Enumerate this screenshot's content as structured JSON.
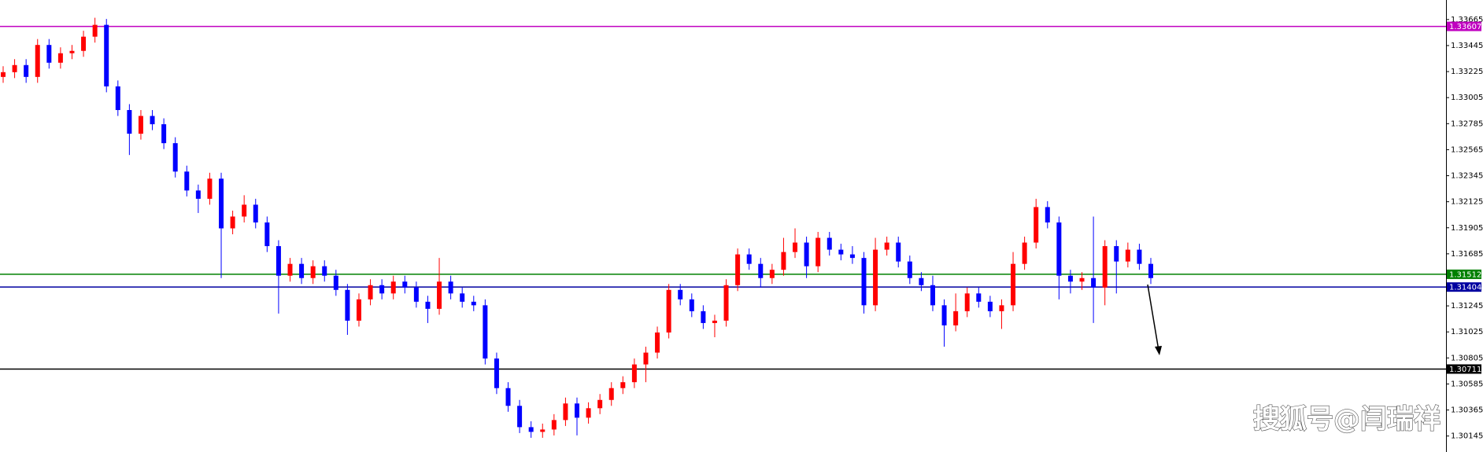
{
  "chart_data": {
    "type": "candlestick",
    "up_color": "#ff0000",
    "down_color": "#0000ff",
    "ylim": [
      1.3001,
      1.3383
    ],
    "yticks": [
      1.33665,
      1.33445,
      1.33225,
      1.33005,
      1.32785,
      1.32565,
      1.32345,
      1.32125,
      1.31905,
      1.31685,
      1.31245,
      1.31025,
      1.30805,
      1.30585,
      1.30365,
      1.30145
    ],
    "levels": [
      {
        "value": 1.33607,
        "color": "#c000c0"
      },
      {
        "value": 1.31512,
        "color": "#008000"
      },
      {
        "value": 1.31404,
        "color": "#0000a0"
      },
      {
        "value": 1.30711,
        "color": "#000000"
      }
    ],
    "watermark": "搜狐号@闫瑞祥",
    "open": [
      1.3318,
      1.3322,
      1.3328,
      1.3318,
      1.3345,
      1.333,
      1.3338,
      1.334,
      1.3352,
      1.3362,
      1.331,
      1.329,
      1.327,
      1.3285,
      1.3278,
      1.3262,
      1.3238,
      1.3222,
      1.3215,
      1.3232,
      1.319,
      1.32,
      1.321,
      1.3195,
      1.3175,
      1.315,
      1.316,
      1.3148,
      1.3158,
      1.315,
      1.3138,
      1.3112,
      1.313,
      1.3142,
      1.3135,
      1.3145,
      1.314,
      1.3128,
      1.3122,
      1.3145,
      1.3135,
      1.3128,
      1.3125,
      1.308,
      1.3055,
      1.304,
      1.3022,
      1.3018,
      1.302,
      1.3028,
      1.3042,
      1.303,
      1.3038,
      1.3045,
      1.3055,
      1.306,
      1.3075,
      1.3085,
      1.3102,
      1.3138,
      1.313,
      1.312,
      1.311,
      1.3112,
      1.3142,
      1.3168,
      1.316,
      1.3148,
      1.3155,
      1.317,
      1.3178,
      1.3158,
      1.3182,
      1.3172,
      1.3168,
      1.3165,
      1.3125,
      1.3172,
      1.3178,
      1.3162,
      1.3148,
      1.3142,
      1.3125,
      1.3108,
      1.312,
      1.3135,
      1.3128,
      1.312,
      1.3125,
      1.316,
      1.3178,
      1.3208,
      1.3195,
      1.315,
      1.3145,
      1.3148,
      1.314,
      1.3175,
      1.3162,
      1.3172,
      1.316
    ],
    "high": [
      1.3327,
      1.3333,
      1.3333,
      1.335,
      1.335,
      1.3343,
      1.3345,
      1.3357,
      1.3368,
      1.3367,
      1.3315,
      1.3295,
      1.329,
      1.329,
      1.3283,
      1.3267,
      1.3243,
      1.3227,
      1.3237,
      1.3237,
      1.3205,
      1.3218,
      1.3215,
      1.32,
      1.318,
      1.3165,
      1.3165,
      1.3163,
      1.3163,
      1.3155,
      1.3143,
      1.3135,
      1.3147,
      1.3147,
      1.315,
      1.315,
      1.3145,
      1.3133,
      1.3165,
      1.315,
      1.314,
      1.3133,
      1.313,
      1.3085,
      1.306,
      1.3045,
      1.3027,
      1.3025,
      1.3033,
      1.3047,
      1.3047,
      1.3043,
      1.305,
      1.306,
      1.3065,
      1.308,
      1.309,
      1.3107,
      1.3143,
      1.3143,
      1.3135,
      1.3125,
      1.3117,
      1.3147,
      1.3173,
      1.3173,
      1.3165,
      1.316,
      1.3182,
      1.319,
      1.3183,
      1.3187,
      1.3187,
      1.3177,
      1.3175,
      1.317,
      1.3182,
      1.3183,
      1.3183,
      1.3167,
      1.3153,
      1.315,
      1.313,
      1.3135,
      1.314,
      1.314,
      1.3133,
      1.313,
      1.317,
      1.3183,
      1.3215,
      1.3213,
      1.32,
      1.3155,
      1.3153,
      1.32,
      1.318,
      1.318,
      1.3178,
      1.3177,
      1.3165
    ],
    "low": [
      1.3313,
      1.3317,
      1.3313,
      1.3313,
      1.3325,
      1.3325,
      1.3333,
      1.3335,
      1.3347,
      1.3305,
      1.3285,
      1.3252,
      1.3265,
      1.3273,
      1.3257,
      1.3233,
      1.3217,
      1.3203,
      1.321,
      1.3148,
      1.3185,
      1.3195,
      1.319,
      1.317,
      1.3118,
      1.3145,
      1.3143,
      1.3143,
      1.3145,
      1.3133,
      1.31,
      1.3107,
      1.3125,
      1.313,
      1.313,
      1.3135,
      1.3123,
      1.311,
      1.3117,
      1.313,
      1.3123,
      1.312,
      1.3075,
      1.305,
      1.3035,
      1.3017,
      1.3013,
      1.3013,
      1.3015,
      1.3023,
      1.3015,
      1.3025,
      1.3033,
      1.304,
      1.305,
      1.3055,
      1.306,
      1.308,
      1.3097,
      1.3125,
      1.3115,
      1.3105,
      1.3098,
      1.3107,
      1.3137,
      1.3155,
      1.314,
      1.3143,
      1.315,
      1.3165,
      1.3148,
      1.3153,
      1.3167,
      1.3163,
      1.316,
      1.3118,
      1.312,
      1.3167,
      1.3157,
      1.3143,
      1.3137,
      1.312,
      1.309,
      1.3103,
      1.3115,
      1.3123,
      1.3115,
      1.3105,
      1.312,
      1.3155,
      1.3173,
      1.319,
      1.313,
      1.3135,
      1.3138,
      1.311,
      1.3125,
      1.3135,
      1.3157,
      1.3155,
      1.3143
    ],
    "close": [
      1.3322,
      1.3328,
      1.3318,
      1.3345,
      1.333,
      1.3338,
      1.334,
      1.3352,
      1.3362,
      1.331,
      1.329,
      1.327,
      1.3285,
      1.3278,
      1.3262,
      1.3238,
      1.3222,
      1.3215,
      1.3232,
      1.319,
      1.32,
      1.321,
      1.3195,
      1.3175,
      1.315,
      1.316,
      1.3148,
      1.3158,
      1.315,
      1.3138,
      1.3112,
      1.313,
      1.3142,
      1.3135,
      1.3145,
      1.314,
      1.3128,
      1.3122,
      1.3145,
      1.3135,
      1.3128,
      1.3125,
      1.308,
      1.3055,
      1.304,
      1.3022,
      1.3018,
      1.302,
      1.3028,
      1.3042,
      1.303,
      1.3038,
      1.3045,
      1.3055,
      1.306,
      1.3075,
      1.3085,
      1.3102,
      1.3138,
      1.313,
      1.312,
      1.311,
      1.3112,
      1.3142,
      1.3168,
      1.316,
      1.3148,
      1.3155,
      1.317,
      1.3178,
      1.3158,
      1.3182,
      1.3172,
      1.3168,
      1.3165,
      1.3125,
      1.3172,
      1.3178,
      1.3162,
      1.3148,
      1.3142,
      1.3125,
      1.3108,
      1.312,
      1.3135,
      1.3128,
      1.312,
      1.3125,
      1.316,
      1.3178,
      1.3208,
      1.3195,
      1.315,
      1.3145,
      1.3148,
      1.314,
      1.3175,
      1.3162,
      1.3172,
      1.316,
      1.3148
    ]
  }
}
